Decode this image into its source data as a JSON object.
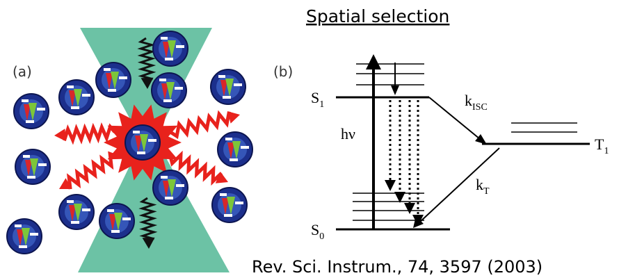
{
  "title": "Spatial selection",
  "panel_a": {
    "label": "(a)"
  },
  "panel_b": {
    "label": "(b)",
    "s1": {
      "text": "S",
      "sub": "1"
    },
    "s0": {
      "text": "S",
      "sub": "0"
    },
    "t1": {
      "text": "T",
      "sub": "1"
    },
    "excitation": "hν",
    "k_isc": {
      "text": "k",
      "sub": "ISC"
    },
    "k_t": {
      "text": "k",
      "sub": "T"
    }
  },
  "citation": "Rev. Sci. Instrum., 74, 3597 (2003)"
}
